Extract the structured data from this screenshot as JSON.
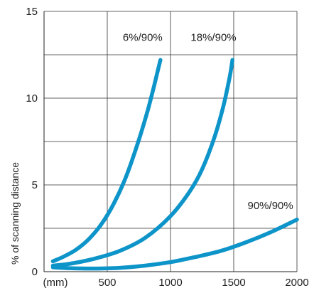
{
  "chart_data": {
    "type": "line",
    "ylabel": "% of scanning distance",
    "xlabel": "",
    "xlim": [
      0,
      2000
    ],
    "ylim": [
      0,
      15
    ],
    "x_tick_labels": [
      "(mm)",
      "500",
      "1000",
      "1500",
      "2000"
    ],
    "x_tick_values": [
      0,
      500,
      1000,
      1500,
      2000
    ],
    "y_tick_labels": [
      "0",
      "5",
      "10",
      "15"
    ],
    "y_tick_values": [
      0,
      5,
      10,
      15
    ],
    "grid": true,
    "series_color": "#0d94c9",
    "grid_color": "#333333",
    "series": [
      {
        "name": "6%/90%",
        "x": [
          70,
          150,
          250,
          350,
          450,
          550,
          650,
          750,
          820,
          870,
          900,
          920
        ],
        "y": [
          0.6,
          0.85,
          1.25,
          1.85,
          2.7,
          3.9,
          5.5,
          7.6,
          9.3,
          10.7,
          11.6,
          12.2
        ]
      },
      {
        "name": "18%/90%",
        "x": [
          70,
          200,
          400,
          600,
          800,
          1000,
          1150,
          1250,
          1350,
          1420,
          1470,
          1490
        ],
        "y": [
          0.35,
          0.45,
          0.75,
          1.2,
          1.95,
          3.2,
          4.6,
          5.9,
          7.8,
          9.6,
          11.3,
          12.2
        ]
      },
      {
        "name": "90%/90%",
        "x": [
          70,
          200,
          400,
          600,
          800,
          1000,
          1200,
          1400,
          1600,
          1800,
          2000
        ],
        "y": [
          0.25,
          0.2,
          0.18,
          0.22,
          0.35,
          0.55,
          0.85,
          1.2,
          1.7,
          2.3,
          3.0
        ]
      }
    ],
    "series_labels": [
      {
        "text": "6%/90%",
        "x": 780,
        "y": 13.3
      },
      {
        "text": "18%/90%",
        "x": 1340,
        "y": 13.3
      },
      {
        "text": "90%/90%",
        "x": 1790,
        "y": 3.6
      }
    ]
  }
}
